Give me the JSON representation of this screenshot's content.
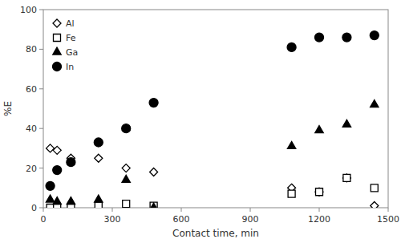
{
  "chart_data": {
    "type": "scatter",
    "xlabel": "Contact time, min",
    "ylabel": "%E",
    "xlim": [
      0,
      1500
    ],
    "ylim": [
      0,
      100
    ],
    "xticks": [
      0,
      300,
      600,
      900,
      1200,
      1500
    ],
    "yticks": [
      0,
      20,
      40,
      60,
      80,
      100
    ],
    "grid": false,
    "legend": "upper-left",
    "series": [
      {
        "name": "Al",
        "color": "black",
        "marker": "diamond-open",
        "x": [
          30,
          60,
          120,
          240,
          360,
          480,
          1080,
          1200,
          1320,
          1440
        ],
        "values": [
          30,
          29,
          25,
          25,
          20,
          18,
          10,
          8,
          15,
          1
        ]
      },
      {
        "name": "Fe",
        "color": "black",
        "marker": "square-open",
        "x": [
          30,
          60,
          120,
          240,
          360,
          480,
          1080,
          1200,
          1320,
          1440
        ],
        "values": [
          0,
          0,
          0,
          1,
          2,
          1,
          7,
          8,
          15,
          10
        ]
      },
      {
        "name": "Ga",
        "color": "black",
        "marker": "triangle",
        "x": [
          30,
          60,
          120,
          240,
          360,
          480,
          1080,
          1200,
          1320,
          1440
        ],
        "values": [
          4,
          3,
          3,
          4,
          14,
          0,
          31,
          39,
          42,
          52
        ]
      },
      {
        "name": "In",
        "color": "black",
        "marker": "circle",
        "x": [
          30,
          60,
          120,
          240,
          360,
          480,
          1080,
          1200,
          1320,
          1440
        ],
        "values": [
          11,
          19,
          23,
          33,
          40,
          53,
          81,
          86,
          86,
          87
        ]
      }
    ]
  }
}
